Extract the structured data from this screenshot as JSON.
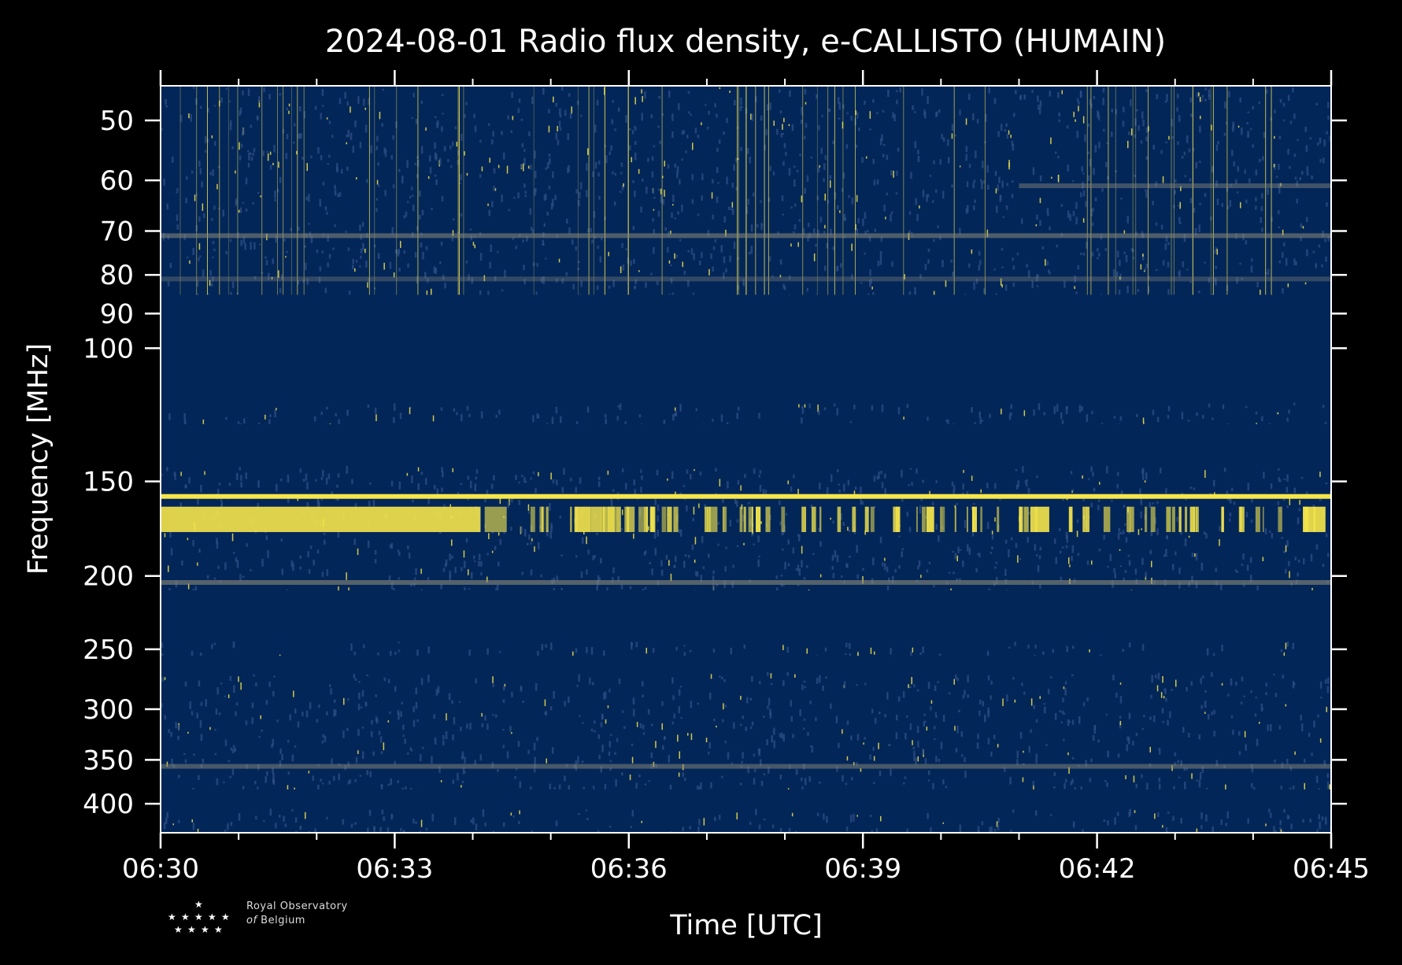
{
  "colors": {
    "background": "#000000",
    "bg_quiet": "#032659",
    "noise": "#2e4f86",
    "emission": "#f6e64a",
    "band": "#8c8a78"
  },
  "chart_data": {
    "type": "heatmap",
    "title": "2024-08-01 Radio flux density, e-CALLISTO (HUMAIN)",
    "xlabel": "Time [UTC]",
    "ylabel": "Frequency [MHz]",
    "x_ticks": [
      "06:30",
      "06:33",
      "06:36",
      "06:39",
      "06:42",
      "06:45"
    ],
    "x_range_minutes": [
      0,
      15
    ],
    "y_scale": "log",
    "y_ticks": [
      50,
      60,
      70,
      80,
      90,
      100,
      150,
      200,
      250,
      300,
      350,
      400
    ],
    "y_range_mhz": [
      45,
      437
    ],
    "colormap": "cividis",
    "blank_bands_mhz": [
      [
        85,
        118
      ],
      [
        126,
        143
      ],
      [
        209,
        244
      ],
      [
        255,
        268
      ],
      [
        383,
        406
      ]
    ],
    "steady_lines_mhz": [
      {
        "freq": 71,
        "intensity": 0.55
      },
      {
        "freq": 61,
        "intensity": 0.45,
        "start_min": 11.0
      },
      {
        "freq": 81,
        "intensity": 0.35
      },
      {
        "freq": 157,
        "intensity": 1.0
      },
      {
        "freq": 204,
        "intensity": 0.6
      },
      {
        "freq": 357,
        "intensity": 0.5
      }
    ],
    "burst_band_mhz": [
      162,
      175
    ],
    "continuous_emission_until_min": 4.1
  },
  "logo": {
    "line1": "Royal Observatory",
    "line2_italic": "of",
    "line2": "Belgium"
  }
}
